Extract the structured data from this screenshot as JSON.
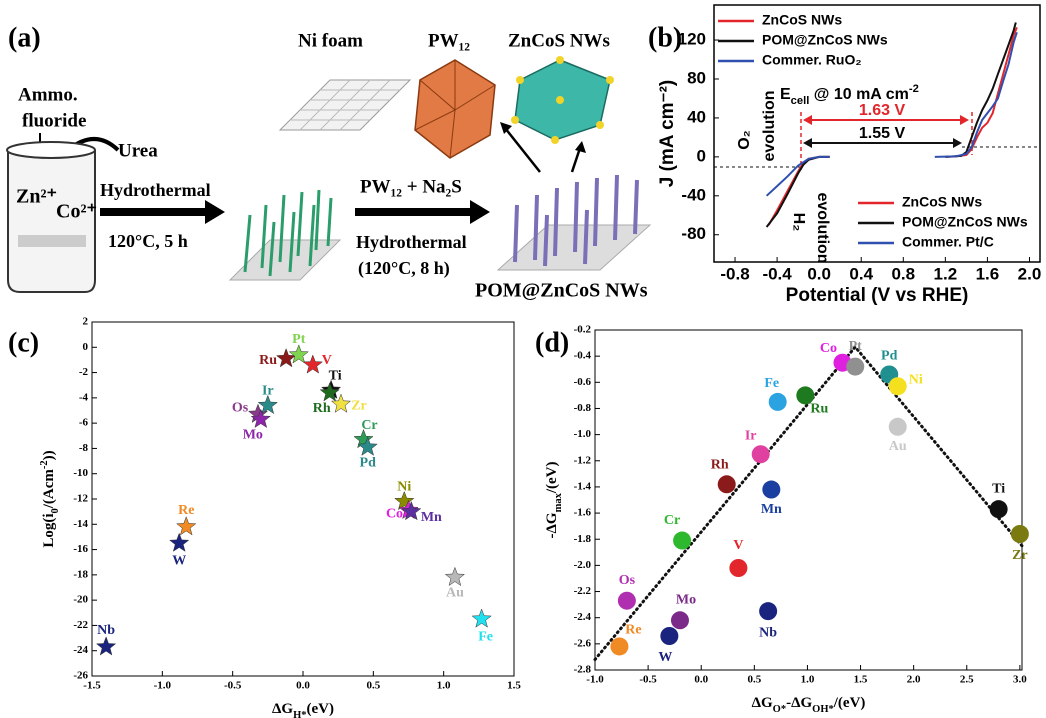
{
  "panel_a": {
    "label": "(a)",
    "reagent_1": [
      "Ammo.",
      "fluoride"
    ],
    "reagent_2": "Urea",
    "ion_1": "Zn²⁺",
    "ion_2": "Co²⁺",
    "step_1": "Hydrothermal",
    "step_1_condition": "120°C, 5 h",
    "step_2_reagents": "PW₁₂ + Na₂S",
    "step_2": "Hydrothermal",
    "step_2_condition": "(120°C, 8 h)",
    "substrate": "Ni foam",
    "component_1": "PW₁₂",
    "component_2": "ZnCoS NWs",
    "product": "POM@ZnCoS NWs"
  },
  "chart_data": [
    {
      "type": "line",
      "panel_label": "(b)",
      "xlabel": "Potential (V vs RHE)",
      "ylabel": "J (mA cm⁻²)",
      "xlim": [
        -1.0,
        2.1
      ],
      "ylim": [
        -108,
        156
      ],
      "xticks": [
        -0.8,
        -0.4,
        {
          "value": 0,
          "label": "0.0"
        },
        0.4,
        0.8,
        1.2,
        1.6,
        {
          "value": 2,
          "label": "2.0"
        }
      ],
      "yticks": [
        -80,
        -40,
        0,
        40,
        80,
        120
      ],
      "series": [
        {
          "name": "ZnCoS NWs",
          "color": "#e3262b",
          "legend": "upper left",
          "x": [
            1.2,
            1.3,
            1.4,
            1.45,
            1.5,
            1.55,
            1.6,
            1.65,
            1.7,
            1.75,
            1.8,
            1.85,
            1.88
          ],
          "values": [
            0,
            0.5,
            2,
            8,
            20,
            30,
            35,
            45,
            65,
            85,
            105,
            125,
            133
          ]
        },
        {
          "name": "POM@ZnCoS NWs",
          "color": "#111111",
          "legend": "upper left",
          "x": [
            1.2,
            1.35,
            1.4,
            1.45,
            1.5,
            1.55,
            1.6,
            1.65,
            1.7,
            1.75,
            1.8,
            1.85,
            1.87
          ],
          "values": [
            0,
            1,
            5,
            20,
            35,
            48,
            58,
            70,
            85,
            100,
            115,
            130,
            138
          ]
        },
        {
          "name": "Commer. RuO₂",
          "color": "#3050b0",
          "legend": "upper left",
          "x": [
            1.1,
            1.3,
            1.4,
            1.45,
            1.5,
            1.55,
            1.6,
            1.65,
            1.7,
            1.75,
            1.8,
            1.85,
            1.88
          ],
          "values": [
            0,
            0.5,
            3,
            10,
            25,
            38,
            45,
            52,
            60,
            78,
            95,
            118,
            128
          ]
        },
        {
          "name": "ZnCoS NWs",
          "color": "#e3262b",
          "legend": "lower right",
          "x": [
            -0.48,
            -0.4,
            -0.3,
            -0.2,
            -0.15,
            -0.1,
            0,
            0.1
          ],
          "values": [
            -70,
            -55,
            -35,
            -15,
            -6,
            -2,
            0,
            0
          ]
        },
        {
          "name": "POM@ZnCoS NWs",
          "color": "#111111",
          "legend": "lower right",
          "x": [
            -0.5,
            -0.4,
            -0.3,
            -0.2,
            -0.15,
            -0.1,
            0,
            0.1
          ],
          "values": [
            -72,
            -58,
            -38,
            -17,
            -8,
            -3,
            0,
            0
          ]
        },
        {
          "name": "Commer. Pt/C",
          "color": "#3050b0",
          "legend": "lower right",
          "x": [
            -0.5,
            -0.4,
            -0.3,
            -0.2,
            -0.1,
            0,
            0.1
          ],
          "values": [
            -40,
            -30,
            -20,
            -9,
            -2,
            0,
            0
          ]
        }
      ],
      "annotations": {
        "o2": [
          "O₂",
          "evolution"
        ],
        "h2": [
          "H₂",
          "evolution"
        ],
        "ecell": [
          {
            "t": "E"
          },
          {
            "t": "cell",
            "s": "sub"
          },
          {
            "t": " @ 10 mA cm"
          },
          {
            "t": "-2",
            "s": "sup"
          }
        ],
        "gap_1": "1.63 V",
        "gap_2": "1.55 V"
      }
    },
    {
      "type": "scatter",
      "marker": "star",
      "panel_label": "(c)",
      "xlabel": [
        {
          "t": "ΔG"
        },
        {
          "t": "H*",
          "s": "sub"
        },
        {
          "t": "(eV)"
        }
      ],
      "ylabel": [
        {
          "t": "Log(i"
        },
        {
          "t": "0",
          "s": "sub"
        },
        {
          "t": "/(Acm"
        },
        {
          "t": "-2",
          "s": "sup"
        },
        {
          "t": "))"
        }
      ],
      "xlim": [
        -1.5,
        1.5
      ],
      "ylim": [
        -26,
        2
      ],
      "xticks": [
        -1.5,
        {
          "value": -1,
          "label": "-1.0"
        },
        -0.5,
        {
          "value": 0,
          "label": "0.0"
        },
        0.5,
        {
          "value": 1,
          "label": "1.0"
        },
        1.5
      ],
      "yticks": [
        -26,
        -24,
        -22,
        -20,
        -18,
        -16,
        -14,
        -12,
        -10,
        -8,
        -6,
        -4,
        -2,
        0,
        2
      ],
      "series": [
        {
          "name": "Nb",
          "color": "#1a237e",
          "x": [
            -1.4
          ],
          "values": [
            -23.7
          ]
        },
        {
          "name": "W",
          "color": "#1a237e",
          "x": [
            -0.88
          ],
          "values": [
            -15.5
          ]
        },
        {
          "name": "Re",
          "color": "#f08a24",
          "x": [
            -0.83
          ],
          "values": [
            -14.2
          ]
        },
        {
          "name": "Os",
          "color": "#8b3a8b",
          "x": [
            -0.32
          ],
          "values": [
            -5.3
          ]
        },
        {
          "name": "Mo",
          "color": "#8e24aa",
          "x": [
            -0.3
          ],
          "values": [
            -5.7
          ]
        },
        {
          "name": "Ir",
          "color": "#2a8a8a",
          "x": [
            -0.25
          ],
          "values": [
            -4.6
          ]
        },
        {
          "name": "Ru",
          "color": "#8b1a1a",
          "x": [
            -0.12
          ],
          "values": [
            -0.9
          ]
        },
        {
          "name": "Pt",
          "color": "#7fd34e",
          "x": [
            -0.03
          ],
          "values": [
            -0.6
          ]
        },
        {
          "name": "V",
          "color": "#e3262b",
          "x": [
            0.07
          ],
          "values": [
            -1.4
          ]
        },
        {
          "name": "Ti",
          "color": "#111111",
          "x": [
            0.2
          ],
          "values": [
            -3.4
          ]
        },
        {
          "name": "Rh",
          "color": "#1e6b1e",
          "x": [
            0.19
          ],
          "values": [
            -3.6
          ]
        },
        {
          "name": "Zr",
          "color": "#f0e040",
          "x": [
            0.27
          ],
          "values": [
            -4.5
          ]
        },
        {
          "name": "Cr",
          "color": "#2e9b57",
          "x": [
            0.43
          ],
          "values": [
            -7.3
          ]
        },
        {
          "name": "Pd",
          "color": "#2a8a8a",
          "x": [
            0.46
          ],
          "values": [
            -7.9
          ]
        },
        {
          "name": "Ni",
          "color": "#8b8b00",
          "x": [
            0.72
          ],
          "values": [
            -12.2
          ]
        },
        {
          "name": "Co",
          "color": "#e020e0",
          "x": [
            0.75
          ],
          "values": [
            -12.9
          ]
        },
        {
          "name": "Mn",
          "color": "#5b2fa0",
          "x": [
            0.77
          ],
          "values": [
            -13.0
          ]
        },
        {
          "name": "Au",
          "color": "#b8b8b8",
          "x": [
            1.08
          ],
          "values": [
            -18.2
          ]
        },
        {
          "name": "Fe",
          "color": "#20e0f0",
          "x": [
            1.27
          ],
          "values": [
            -21.5
          ]
        }
      ]
    },
    {
      "type": "scatter",
      "marker": "circle",
      "panel_label": "(d)",
      "xlabel": [
        {
          "t": "ΔG"
        },
        {
          "t": "O*",
          "s": "sub"
        },
        {
          "t": "-ΔG"
        },
        {
          "t": "OH*",
          "s": "sub"
        },
        {
          "t": "/(eV)"
        }
      ],
      "ylabel": [
        {
          "t": "-ΔG"
        },
        {
          "t": "max",
          "s": "sub"
        },
        {
          "t": "/(eV)"
        }
      ],
      "xlim": [
        -1.0,
        3.02
      ],
      "ylim": [
        -2.8,
        -0.2
      ],
      "xticks": [
        {
          "value": -1,
          "label": "-1.0"
        },
        -0.5,
        {
          "value": 0,
          "label": "0.0"
        },
        0.5,
        {
          "value": 1,
          "label": "1.0"
        },
        1.5,
        {
          "value": 2,
          "label": "2.0"
        },
        2.5,
        {
          "value": 3,
          "label": "3.0"
        }
      ],
      "yticks": [
        -2.8,
        -2.6,
        -2.4,
        -2.2,
        {
          "value": -2,
          "label": "-2.0"
        },
        -1.8,
        -1.6,
        -1.4,
        -1.2,
        {
          "value": -1,
          "label": "-1.0"
        },
        -0.8,
        -0.6,
        -0.4,
        -0.2
      ],
      "trend": {
        "color": "#111111",
        "x": [
          -1.0,
          1.45,
          3.02
        ],
        "values": [
          -2.72,
          -0.33,
          -1.85
        ]
      },
      "series": [
        {
          "name": "Co",
          "color": "#e020e0",
          "x": [
            1.33
          ],
          "values": [
            -0.45
          ]
        },
        {
          "name": "Pt",
          "color": "#909090",
          "x": [
            1.45
          ],
          "values": [
            -0.48
          ]
        },
        {
          "name": "Pd",
          "color": "#1f8f8f",
          "x": [
            1.77
          ],
          "values": [
            -0.54
          ]
        },
        {
          "name": "Ni",
          "color": "#f5e020",
          "x": [
            1.85
          ],
          "values": [
            -0.63
          ]
        },
        {
          "name": "Fe",
          "color": "#2aa3e0",
          "x": [
            0.72
          ],
          "values": [
            -0.75
          ]
        },
        {
          "name": "Ru",
          "color": "#1e7a1e",
          "x": [
            0.98
          ],
          "values": [
            -0.7
          ]
        },
        {
          "name": "Au",
          "color": "#c8c8c8",
          "x": [
            1.85
          ],
          "values": [
            -0.94
          ]
        },
        {
          "name": "Ir",
          "color": "#e040a0",
          "x": [
            0.56
          ],
          "values": [
            -1.15
          ]
        },
        {
          "name": "Rh",
          "color": "#8b1a1a",
          "x": [
            0.24
          ],
          "values": [
            -1.38
          ]
        },
        {
          "name": "Mn",
          "color": "#1a3fa0",
          "x": [
            0.66
          ],
          "values": [
            -1.42
          ]
        },
        {
          "name": "Ti",
          "color": "#111111",
          "x": [
            2.8
          ],
          "values": [
            -1.57
          ]
        },
        {
          "name": "Cr",
          "color": "#2eb82e",
          "x": [
            -0.18
          ],
          "values": [
            -1.81
          ]
        },
        {
          "name": "Zr",
          "color": "#7a7a10",
          "x": [
            3.0
          ],
          "values": [
            -1.76
          ]
        },
        {
          "name": "V",
          "color": "#e3262b",
          "x": [
            0.35
          ],
          "values": [
            -2.02
          ]
        },
        {
          "name": "Os",
          "color": "#b02fb0",
          "x": [
            -0.7
          ],
          "values": [
            -2.27
          ]
        },
        {
          "name": "Mo",
          "color": "#7b2a8a",
          "x": [
            -0.2
          ],
          "values": [
            -2.42
          ]
        },
        {
          "name": "Nb",
          "color": "#1a237e",
          "x": [
            0.63
          ],
          "values": [
            -2.35
          ]
        },
        {
          "name": "W",
          "color": "#1a237e",
          "x": [
            -0.3
          ],
          "values": [
            -2.54
          ]
        },
        {
          "name": "Re",
          "color": "#f08a24",
          "x": [
            -0.77
          ],
          "values": [
            -2.62
          ]
        }
      ]
    }
  ]
}
